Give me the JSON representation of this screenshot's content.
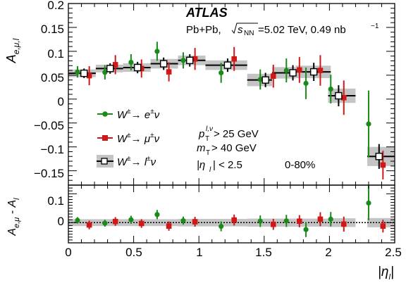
{
  "chart_data": {
    "type": "scatter",
    "xlabel": "|η_l|",
    "ylabel_top": "A_{e,μ,l}",
    "ylabel_bottom": "A_{e,μ} - A_l",
    "xlim": [
      0,
      2.5
    ],
    "ylim_top": [
      -0.18,
      0.2
    ],
    "ylim_bottom": [
      -0.07,
      0.13
    ],
    "x_ticks": [
      "0",
      "0.5",
      "1",
      "1.5",
      "2",
      "2.5"
    ],
    "y_ticks_top": [
      "0.2",
      "0.15",
      "0.1",
      "0.05",
      "0",
      "−0.05",
      "−0.1",
      "−0.15"
    ],
    "y_ticks_bottom": [
      "0.1",
      "0"
    ],
    "annotations": {
      "experiment": "ATLAS",
      "collision": "Pb+Pb,",
      "energy_label": "s",
      "energy_sub": "NN",
      "energy_value": "=5.02 TeV, 0.49 nb",
      "energy_sup": "−1",
      "cut_pt": "p",
      "cut_pt_sub": "T",
      "cut_pt_sup": "l,ν",
      "cut_pt_value": " > 25 GeV",
      "cut_mt": "m",
      "cut_mt_sub": "T",
      "cut_mt_value": " > 40 GeV",
      "cut_eta_pre": "|η",
      "cut_eta_sub": "l",
      "cut_eta_value": "| < 2.5",
      "centrality": "0-80%"
    },
    "legend": {
      "placement": "middle-left",
      "entries": [
        {
          "label_pre": "W",
          "label_sup": "±",
          "label_post": "→ e",
          "label_sup2": "±",
          "label_end": "ν"
        },
        {
          "label_pre": "W",
          "label_sup": "±",
          "label_post": "→ μ",
          "label_sup2": "±",
          "label_end": "ν"
        },
        {
          "label_pre": "W",
          "label_sup": "±",
          "label_post": "→ l",
          "label_sup2": "±",
          "label_end": "ν"
        }
      ]
    },
    "series": [
      {
        "marker": "circle",
        "color": "#1a8a1a",
        "points": [
          {
            "x": 0.07,
            "y": 0.057,
            "err": 0.012
          },
          {
            "x": 0.28,
            "y": 0.056,
            "err": 0.015
          },
          {
            "x": 0.48,
            "y": 0.077,
            "err": 0.017
          },
          {
            "x": 0.68,
            "y": 0.1,
            "err": 0.02
          },
          {
            "x": 0.88,
            "y": 0.081,
            "err": 0.017
          },
          {
            "x": 1.17,
            "y": 0.055,
            "err": 0.021
          },
          {
            "x": 1.47,
            "y": 0.041,
            "err": 0.021
          },
          {
            "x": 1.67,
            "y": 0.06,
            "err": 0.025
          },
          {
            "x": 1.82,
            "y": 0.033,
            "err": 0.033
          },
          {
            "x": 2.01,
            "y": 0.021,
            "err": 0.03
          },
          {
            "x": 2.3,
            "y": -0.052,
            "err": 0.07
          }
        ],
        "diff": [
          {
            "x": 0.07,
            "y": 0.008,
            "err": 0.011
          },
          {
            "x": 0.28,
            "y": -0.002,
            "err": 0.012
          },
          {
            "x": 0.48,
            "y": 0.01,
            "err": 0.014
          },
          {
            "x": 0.68,
            "y": 0.028,
            "err": 0.016
          },
          {
            "x": 0.88,
            "y": 0.007,
            "err": 0.014
          },
          {
            "x": 1.17,
            "y": -0.013,
            "err": 0.017
          },
          {
            "x": 1.47,
            "y": 0.005,
            "err": 0.02
          },
          {
            "x": 1.67,
            "y": 0.006,
            "err": 0.021
          },
          {
            "x": 1.82,
            "y": -0.024,
            "err": 0.026
          },
          {
            "x": 2.01,
            "y": 0.012,
            "err": 0.025
          },
          {
            "x": 2.3,
            "y": 0.068,
            "err": 0.06
          }
        ]
      },
      {
        "marker": "square",
        "color": "#d01818",
        "points": [
          {
            "x": 0.16,
            "y": 0.049,
            "err": 0.02
          },
          {
            "x": 0.36,
            "y": 0.072,
            "err": 0.02
          },
          {
            "x": 0.56,
            "y": 0.064,
            "err": 0.019
          },
          {
            "x": 0.77,
            "y": 0.057,
            "err": 0.02
          },
          {
            "x": 0.97,
            "y": 0.084,
            "err": 0.023
          },
          {
            "x": 1.27,
            "y": 0.084,
            "err": 0.025
          },
          {
            "x": 1.57,
            "y": 0.048,
            "err": 0.024
          },
          {
            "x": 1.77,
            "y": 0.061,
            "err": 0.027
          },
          {
            "x": 1.93,
            "y": 0.06,
            "err": 0.032
          },
          {
            "x": 2.11,
            "y": 0.003,
            "err": 0.036
          },
          {
            "x": 2.41,
            "y": -0.138,
            "err": 0.03
          }
        ],
        "diff": [
          {
            "x": 0.16,
            "y": -0.008,
            "err": 0.015
          },
          {
            "x": 0.36,
            "y": 0.004,
            "err": 0.015
          },
          {
            "x": 0.56,
            "y": -0.003,
            "err": 0.015
          },
          {
            "x": 0.77,
            "y": -0.012,
            "err": 0.016
          },
          {
            "x": 0.97,
            "y": 0.003,
            "err": 0.017
          },
          {
            "x": 1.27,
            "y": 0.009,
            "err": 0.019
          },
          {
            "x": 1.57,
            "y": -0.006,
            "err": 0.019
          },
          {
            "x": 1.77,
            "y": 0.005,
            "err": 0.021
          },
          {
            "x": 1.93,
            "y": 0.012,
            "err": 0.024
          },
          {
            "x": 2.11,
            "y": -0.005,
            "err": 0.026
          },
          {
            "x": 2.41,
            "y": -0.012,
            "err": 0.022
          }
        ]
      },
      {
        "marker": "open-square",
        "color": "#000000",
        "band_color": "#c4c4c4",
        "points": [
          {
            "x": 0.12,
            "xlo": 0.0,
            "xhi": 0.21,
            "y": 0.054,
            "err": 0.01,
            "syst": 0.008
          },
          {
            "x": 0.32,
            "xlo": 0.21,
            "xhi": 0.42,
            "y": 0.064,
            "err": 0.011,
            "syst": 0.008
          },
          {
            "x": 0.53,
            "xlo": 0.42,
            "xhi": 0.63,
            "y": 0.066,
            "err": 0.012,
            "syst": 0.009
          },
          {
            "x": 0.73,
            "xlo": 0.63,
            "xhi": 0.84,
            "y": 0.074,
            "err": 0.013,
            "syst": 0.01
          },
          {
            "x": 0.93,
            "xlo": 0.84,
            "xhi": 1.05,
            "y": 0.081,
            "err": 0.013,
            "syst": 0.01
          },
          {
            "x": 1.22,
            "xlo": 1.05,
            "xhi": 1.37,
            "y": 0.071,
            "err": 0.014,
            "syst": 0.01
          },
          {
            "x": 1.51,
            "xlo": 1.37,
            "xhi": 1.56,
            "y": 0.04,
            "err": 0.015,
            "syst": 0.013
          },
          {
            "x": 1.72,
            "xlo": 1.56,
            "xhi": 1.74,
            "y": 0.055,
            "err": 0.016,
            "syst": 0.012
          },
          {
            "x": 1.88,
            "xlo": 1.74,
            "xhi": 2.01,
            "y": 0.057,
            "err": 0.019,
            "syst": 0.013
          },
          {
            "x": 2.07,
            "xlo": 1.99,
            "xhi": 2.2,
            "y": 0.007,
            "err": 0.022,
            "syst": 0.015
          },
          {
            "x": 2.38,
            "xlo": 2.29,
            "xhi": 2.5,
            "y": -0.12,
            "err": 0.026,
            "syst": 0.02
          }
        ]
      }
    ],
    "bottom_band": [
      {
        "xlo": 0.0,
        "xhi": 0.21,
        "half": 0.012
      },
      {
        "xlo": 0.21,
        "xhi": 0.42,
        "half": 0.012
      },
      {
        "xlo": 0.42,
        "xhi": 0.63,
        "half": 0.012
      },
      {
        "xlo": 0.63,
        "xhi": 0.84,
        "half": 0.012
      },
      {
        "xlo": 0.84,
        "xhi": 1.05,
        "half": 0.013
      },
      {
        "xlo": 1.05,
        "xhi": 1.37,
        "half": 0.013
      },
      {
        "xlo": 1.37,
        "xhi": 1.56,
        "half": 0.014
      },
      {
        "xlo": 1.56,
        "xhi": 1.74,
        "half": 0.014
      },
      {
        "xlo": 1.74,
        "xhi": 2.01,
        "half": 0.014
      },
      {
        "xlo": 1.99,
        "xhi": 2.2,
        "half": 0.015
      },
      {
        "xlo": 2.29,
        "xhi": 2.5,
        "half": 0.016
      }
    ]
  }
}
